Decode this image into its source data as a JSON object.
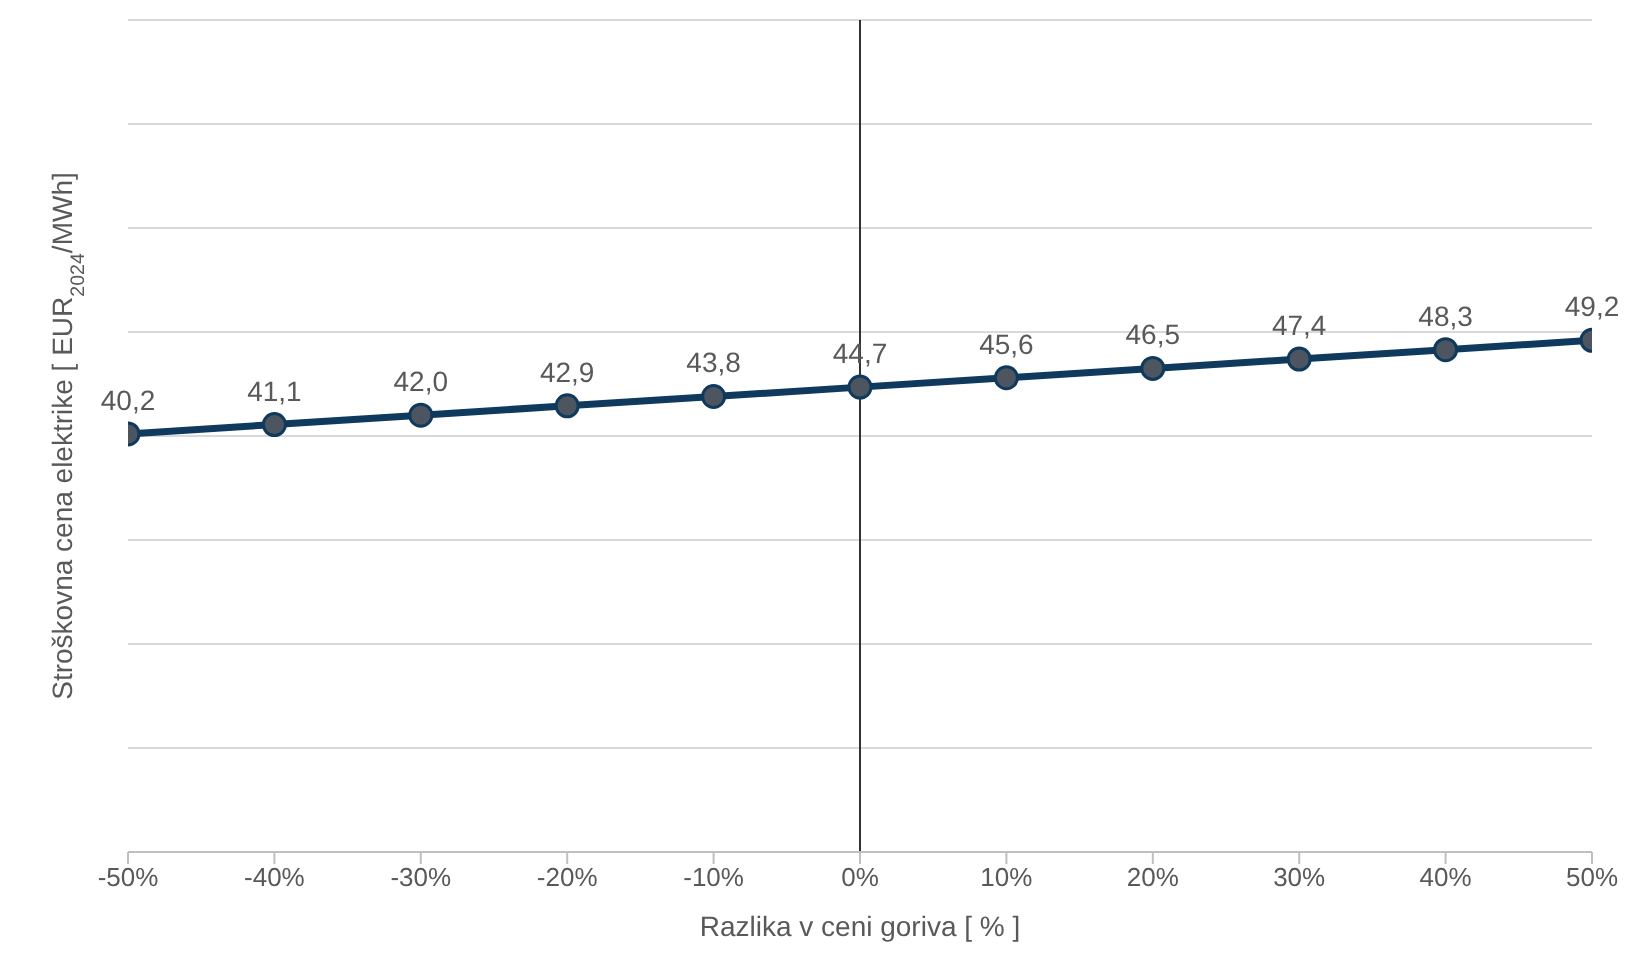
{
  "chart_data": {
    "type": "line",
    "xlabel": "Razlika v ceni goriva [ % ]",
    "ylabel": "Stroškovna cena  elektrike [ EUR$_{2024}$/MWh]",
    "x": [
      -50,
      -40,
      -30,
      -20,
      -10,
      0,
      10,
      20,
      30,
      40,
      50
    ],
    "series": [
      {
        "color": "#0f3a5e",
        "values": [
          40.2,
          41.1,
          42.0,
          42.9,
          43.8,
          44.7,
          45.6,
          46.5,
          47.4,
          48.3,
          49.2
        ],
        "value_labels": [
          "40,2",
          "41,1",
          "42,0",
          "42,9",
          "43,8",
          "44,7",
          "45,6",
          "46,5",
          "47,4",
          "48,3",
          "49,2"
        ]
      }
    ],
    "xlim": [
      -50,
      50
    ],
    "xticks": [
      {
        "value": -50,
        "label": "-50%"
      },
      {
        "value": -40,
        "label": "-40%"
      },
      {
        "value": -30,
        "label": "-30%"
      },
      {
        "value": -20,
        "label": "-20%"
      },
      {
        "value": -10,
        "label": "-10%"
      },
      {
        "value": 0,
        "label": "0%"
      },
      {
        "value": 10,
        "label": "10%"
      },
      {
        "value": 20,
        "label": "20%"
      },
      {
        "value": 30,
        "label": "30%"
      },
      {
        "value": 40,
        "label": "40%"
      },
      {
        "value": 50,
        "label": "50%"
      }
    ],
    "ylim": [
      0,
      80
    ],
    "yticks": [
      {
        "value": 0,
        "label": null
      },
      {
        "value": 10,
        "label": null
      },
      {
        "value": 20,
        "label": null
      },
      {
        "value": 30,
        "label": null
      },
      {
        "value": 40,
        "label": null
      },
      {
        "value": 50,
        "label": null
      },
      {
        "value": 60,
        "label": null
      },
      {
        "value": 70,
        "label": null
      },
      {
        "value": 80,
        "label": null
      }
    ],
    "ref_lines": [
      {
        "axis": "x",
        "value": 0,
        "color": "#333333"
      }
    ],
    "tick_labels": "x",
    "grid": "y",
    "marker": "circle",
    "line_style": "solid",
    "legend": false
  }
}
